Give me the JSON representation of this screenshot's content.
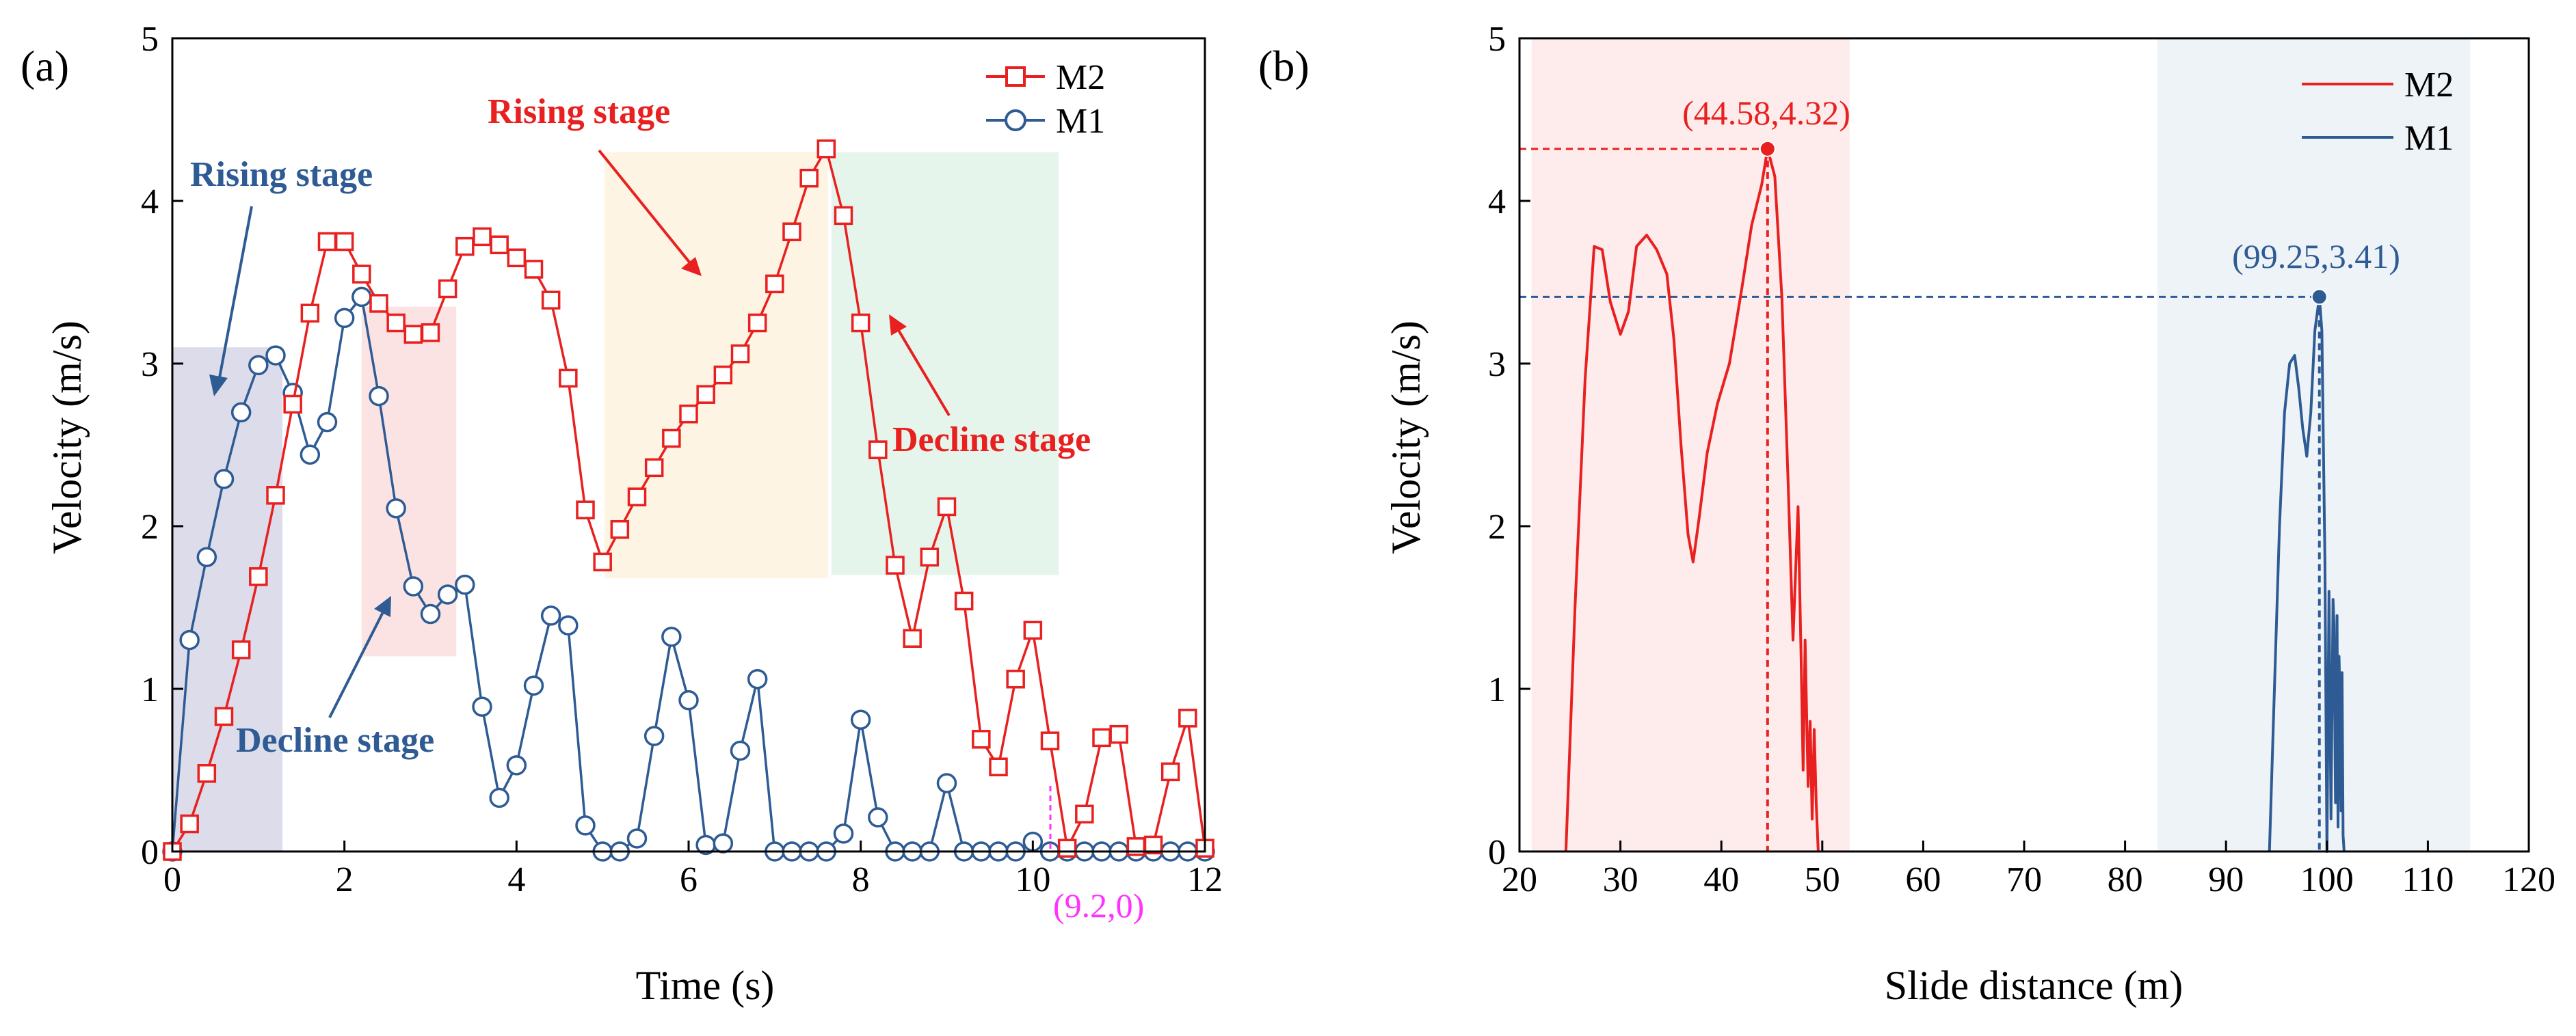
{
  "chart_data": [
    {
      "panel_label": "(a)",
      "type": "line",
      "xlabel": "Time (s)",
      "ylabel": "Velocity (m/s)",
      "xlim": [
        0,
        12
      ],
      "ylim": [
        0,
        5
      ],
      "xticks": [
        0,
        2,
        4,
        6,
        8,
        10,
        12
      ],
      "yticks": [
        0,
        1,
        2,
        3,
        4,
        5
      ],
      "legend": {
        "placement": "top-right",
        "entries": [
          "M2",
          "M1"
        ]
      },
      "series": [
        {
          "name": "M2",
          "color": "#e8201f",
          "marker": "square",
          "x": [
            0,
            0.2,
            0.4,
            0.6,
            0.8,
            1.0,
            1.2,
            1.4,
            1.6,
            1.8,
            2.0,
            2.2,
            2.4,
            2.6,
            2.8,
            3.0,
            3.2,
            3.4,
            3.6,
            3.8,
            4.0,
            4.2,
            4.4,
            4.6,
            4.8,
            5.0,
            5.2,
            5.4,
            5.6,
            5.8,
            6.0,
            6.2,
            6.4,
            6.6,
            6.8,
            7.0,
            7.2,
            7.4,
            7.6,
            7.8,
            8.0,
            8.2,
            8.4,
            8.6,
            8.8,
            9.0,
            9.2,
            9.4,
            9.6,
            9.8,
            10.0,
            10.2,
            10.4,
            10.6,
            10.8,
            11.0,
            11.2,
            11.4,
            11.6,
            11.8,
            12.0
          ],
          "values": [
            0,
            0.17,
            0.48,
            0.83,
            1.24,
            1.69,
            2.19,
            2.75,
            3.31,
            3.75,
            3.75,
            3.55,
            3.37,
            3.25,
            3.18,
            3.19,
            3.46,
            3.72,
            3.78,
            3.73,
            3.65,
            3.58,
            3.39,
            2.91,
            2.1,
            1.78,
            1.98,
            2.18,
            2.36,
            2.54,
            2.69,
            2.81,
            2.93,
            3.06,
            3.25,
            3.49,
            3.81,
            4.14,
            4.32,
            3.91,
            3.25,
            2.47,
            1.76,
            1.31,
            1.81,
            2.12,
            1.54,
            0.69,
            0.52,
            1.06,
            1.36,
            0.68,
            0.02,
            0.23,
            0.7,
            0.72,
            0.03,
            0.04,
            0.49,
            0.82,
            0.02
          ]
        },
        {
          "name": "M1",
          "color": "#2e5b94",
          "marker": "circle",
          "x": [
            0,
            0.2,
            0.4,
            0.6,
            0.8,
            1.0,
            1.2,
            1.4,
            1.6,
            1.8,
            2.0,
            2.2,
            2.4,
            2.6,
            2.8,
            3.0,
            3.2,
            3.4,
            3.6,
            3.8,
            4.0,
            4.2,
            4.4,
            4.6,
            4.8,
            5.0,
            5.2,
            5.4,
            5.6,
            5.8,
            6.0,
            6.2,
            6.4,
            6.6,
            6.8,
            7.0,
            7.2,
            7.4,
            7.6,
            7.8,
            8.0,
            8.2,
            8.4,
            8.6,
            8.8,
            9.0,
            9.2,
            9.4,
            9.6,
            9.8,
            10.0,
            10.2,
            10.4,
            10.6,
            10.8,
            11.0,
            11.2,
            11.4,
            11.6,
            11.8,
            12.0
          ],
          "values": [
            0,
            1.3,
            1.81,
            2.29,
            2.7,
            2.99,
            3.05,
            2.82,
            2.44,
            2.64,
            3.28,
            3.41,
            2.8,
            2.11,
            1.63,
            1.46,
            1.58,
            1.64,
            0.89,
            0.33,
            0.53,
            1.02,
            1.45,
            1.39,
            0.16,
            0.0,
            0.0,
            0.08,
            0.71,
            1.32,
            0.93,
            0.04,
            0.05,
            0.62,
            1.06,
            0.0,
            0.0,
            0.0,
            0.0,
            0.11,
            0.81,
            0.21,
            0.0,
            0.0,
            0.0,
            0.42,
            0.0,
            0.0,
            0.0,
            0.0,
            0.06,
            0.0,
            0.0,
            0.0,
            0.0,
            0.0,
            0.0,
            0.0,
            0.0,
            0.0,
            0.0
          ]
        }
      ],
      "shaded_regions": [
        {
          "x": [
            0,
            1.28
          ],
          "y": [
            0,
            3.1
          ],
          "color": "#dcdcea",
          "series": "M1"
        },
        {
          "x": [
            2.2,
            3.3
          ],
          "y": [
            1.2,
            3.35
          ],
          "color": "#fbe3e4",
          "series": "M1"
        },
        {
          "x": [
            5.02,
            7.62
          ],
          "y": [
            1.68,
            4.3
          ],
          "color": "#fdf4e3",
          "series": "M2"
        },
        {
          "x": [
            7.66,
            10.3
          ],
          "y": [
            1.7,
            4.3
          ],
          "color": "#e6f5ec",
          "series": "M2"
        }
      ],
      "annotations": [
        {
          "text": "Rising stage",
          "color": "#2e5b94"
        },
        {
          "text": "Decline stage",
          "color": "#2e5b94"
        },
        {
          "text": "Rising stage",
          "color": "#e8201f"
        },
        {
          "text": "Decline stage",
          "color": "#e8201f"
        },
        {
          "text": "(9.2,0)",
          "color": "#ff33ff",
          "x": 10.25,
          "y": 0
        }
      ]
    },
    {
      "panel_label": "(b)",
      "type": "line",
      "xlabel": "Slide distance (m)",
      "ylabel": "Velocity (m/s)",
      "xlim": [
        20,
        120
      ],
      "ylim": [
        0,
        5
      ],
      "xticks": [
        20,
        30,
        40,
        50,
        60,
        70,
        80,
        90,
        100,
        110,
        120
      ],
      "yticks": [
        0,
        1,
        2,
        3,
        4,
        5
      ],
      "legend": {
        "placement": "top-right",
        "entries": [
          "M2",
          "M1"
        ]
      },
      "series": [
        {
          "name": "M2",
          "color": "#e8201f",
          "x": [
            24.6,
            25.5,
            26.5,
            27.4,
            28.2,
            29.0,
            30.0,
            30.8,
            31.6,
            32.6,
            33.6,
            34.6,
            35.3,
            36.0,
            36.7,
            37.2,
            37.8,
            38.6,
            39.6,
            40.8,
            42.0,
            43.0,
            44.0,
            44.58,
            45.3,
            46.0,
            46.6,
            47.1,
            47.6,
            47.9,
            48.1,
            48.3,
            48.6,
            48.8,
            49.0,
            49.2,
            49.4,
            49.6
          ],
          "values": [
            0.0,
            1.5,
            2.9,
            3.72,
            3.7,
            3.38,
            3.18,
            3.32,
            3.72,
            3.79,
            3.7,
            3.55,
            3.15,
            2.5,
            1.95,
            1.78,
            2.05,
            2.45,
            2.75,
            3.0,
            3.45,
            3.85,
            4.1,
            4.32,
            4.15,
            3.4,
            2.3,
            1.3,
            2.12,
            1.2,
            0.5,
            1.3,
            0.4,
            0.8,
            0.2,
            0.75,
            0.3,
            0.0
          ],
          "peak": {
            "x": 44.58,
            "y": 4.32,
            "label": "(44.58,4.32)"
          },
          "shaded_region": {
            "x": [
              21.2,
              52.7
            ],
            "color": "#fdeceb"
          }
        },
        {
          "name": "M1",
          "color": "#2e5b94",
          "x": [
            94.3,
            94.8,
            95.3,
            95.8,
            96.3,
            96.8,
            97.2,
            97.6,
            98.0,
            98.4,
            98.8,
            99.25,
            99.5,
            99.8,
            100.0,
            100.2,
            100.4,
            100.6,
            100.7,
            100.85,
            101.0,
            101.1,
            101.2,
            101.3,
            101.4,
            101.5,
            101.6,
            101.7
          ],
          "values": [
            0.0,
            1.0,
            2.0,
            2.7,
            3.0,
            3.05,
            2.85,
            2.6,
            2.43,
            2.7,
            3.2,
            3.41,
            3.2,
            1.8,
            0.0,
            1.6,
            0.2,
            1.55,
            1.4,
            0.3,
            1.45,
            0.15,
            1.2,
            0.9,
            0.25,
            1.1,
            0.1,
            0.0
          ],
          "peak": {
            "x": 99.25,
            "y": 3.41,
            "label": "(99.25,3.41)"
          },
          "shaded_region": {
            "x": [
              83.2,
              114.2
            ],
            "color": "#eef3f8"
          }
        }
      ]
    }
  ]
}
